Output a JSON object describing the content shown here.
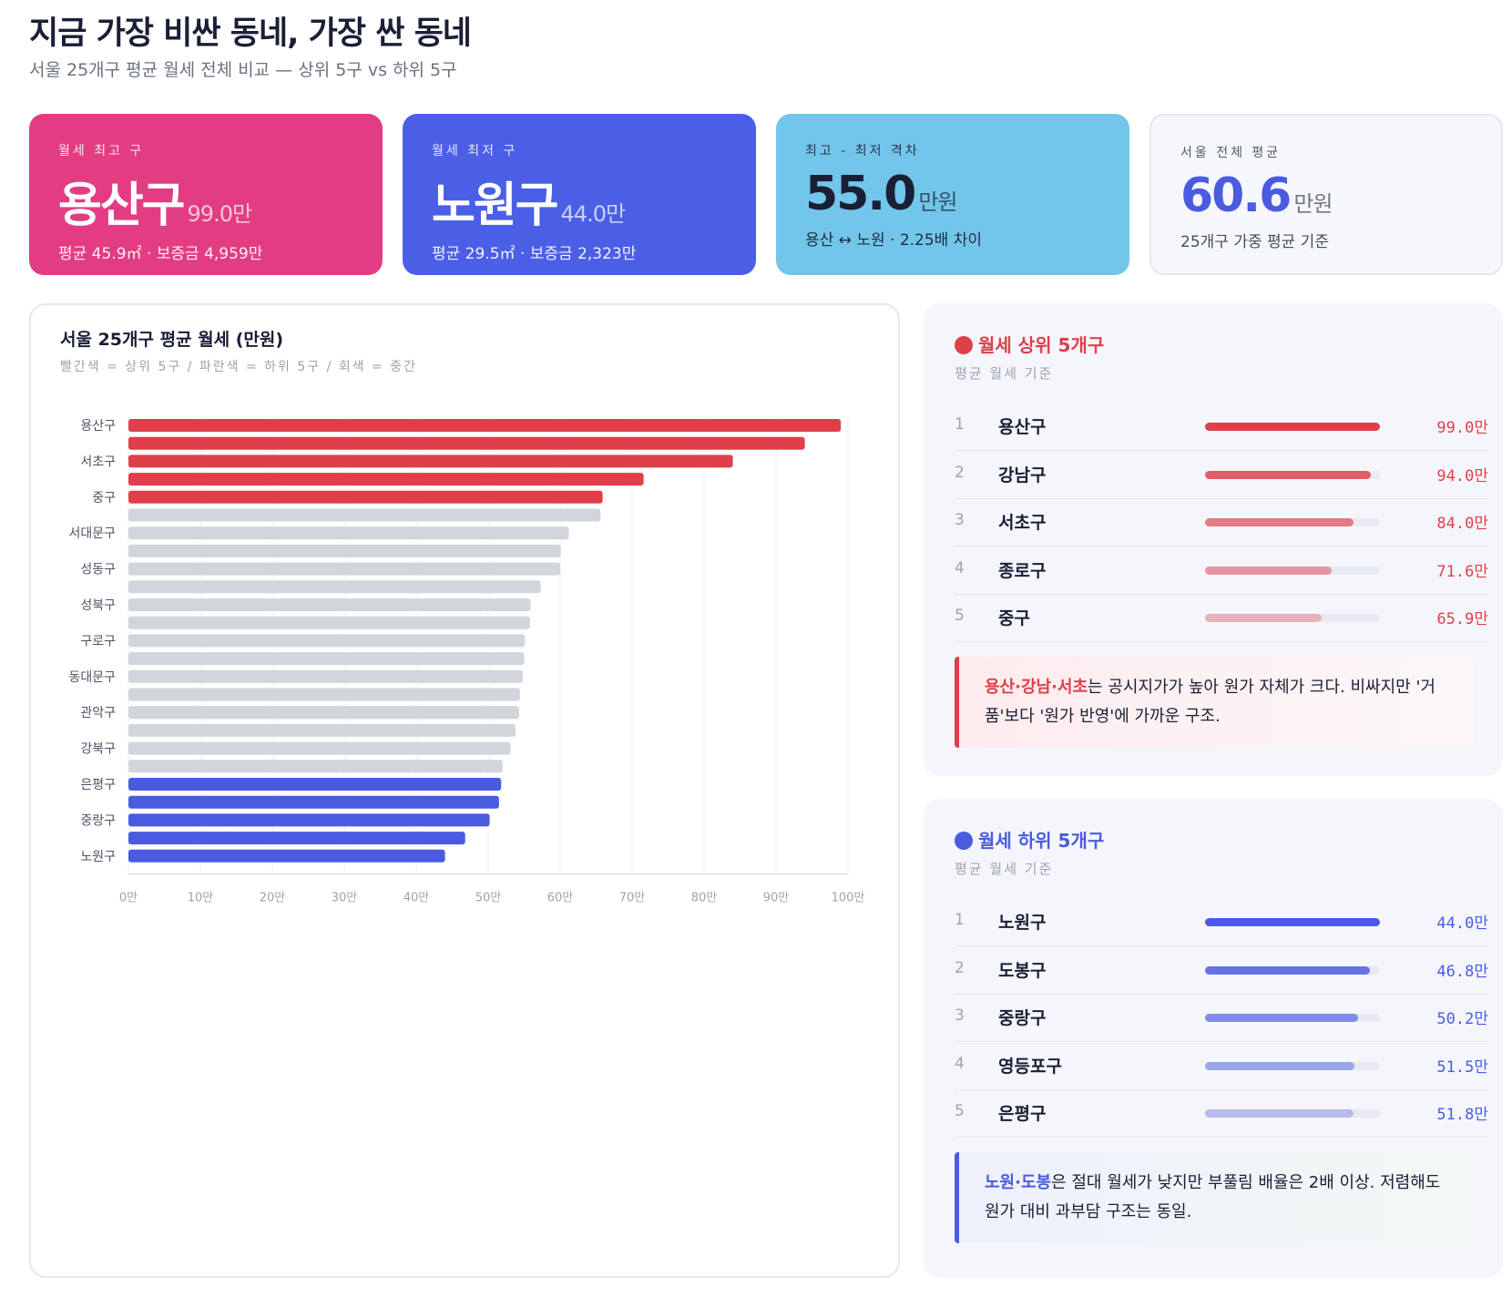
{
  "header": {
    "title": "지금 가장 비싼 동네, 가장 싼 동네",
    "subtitle": "서울 25개구 평균 월세 전체 비교 — 상위 5구 vs 하위 5구"
  },
  "cards": [
    {
      "label": "월세 최고 구",
      "value": "용산구",
      "extra": "99.0만",
      "note": "평균 45.9㎡ · 보증금 4,959만"
    },
    {
      "label": "월세 최저 구",
      "value": "노원구",
      "extra": "44.0만",
      "note": "평균 29.5㎡ · 보증금 2,323만"
    },
    {
      "label": "최고 - 최저 격차",
      "value": "55.0",
      "extra": "만원",
      "note": "용산 ↔ 노원 · 2.25배 차이"
    },
    {
      "label": "서울 전체 평균",
      "value": "60.6",
      "extra": "만원",
      "note": "25개구 가중 평균 기준"
    }
  ],
  "chart_data": {
    "type": "bar",
    "orientation": "horizontal",
    "title": "서울 25개구 평균 월세 (만원)",
    "subtitle": "빨간색 = 상위 5구 / 파란색 = 하위 5구 / 회색 = 중간",
    "categories": [
      "용산구",
      null,
      "서초구",
      null,
      "중구",
      null,
      "서대문구",
      null,
      "성동구",
      null,
      "성북구",
      null,
      "구로구",
      null,
      "동대문구",
      null,
      "관악구",
      null,
      "강북구",
      null,
      "은평구",
      null,
      "중랑구",
      null,
      "노원구"
    ],
    "values": [
      99.0,
      94.0,
      84.0,
      71.6,
      65.9,
      65.6,
      61.2,
      60.1,
      60.0,
      57.3,
      55.9,
      55.8,
      55.1,
      55.0,
      54.8,
      54.4,
      54.3,
      53.8,
      53.1,
      52.0,
      51.8,
      51.5,
      50.2,
      46.8,
      44.0
    ],
    "colors": [
      "#e03e4a",
      "#e03e4a",
      "#e03e4a",
      "#e03e4a",
      "#e03e4a",
      "#d1d5dc",
      "#d1d5dc",
      "#d1d5dc",
      "#d1d5dc",
      "#d1d5dc",
      "#d1d5dc",
      "#d1d5dc",
      "#d1d5dc",
      "#d1d5dc",
      "#d1d5dc",
      "#d1d5dc",
      "#d1d5dc",
      "#d1d5dc",
      "#d1d5dc",
      "#d1d5dc",
      "#4a5be0",
      "#4a5be0",
      "#4a5be0",
      "#4a5be0",
      "#4a5be0"
    ],
    "xlim": [
      0,
      100
    ],
    "xticks": [
      {
        "value": 0,
        "label": "0만"
      },
      {
        "value": 10,
        "label": "10만"
      },
      {
        "value": 20,
        "label": "20만"
      },
      {
        "value": 30,
        "label": "30만"
      },
      {
        "value": 40,
        "label": "40만"
      },
      {
        "value": 50,
        "label": "50만"
      },
      {
        "value": 60,
        "label": "60만"
      },
      {
        "value": 70,
        "label": "70만"
      },
      {
        "value": 80,
        "label": "80만"
      },
      {
        "value": 90,
        "label": "90만"
      },
      {
        "value": 100,
        "label": "100만"
      }
    ],
    "grid": true
  },
  "top5": {
    "title": "월세 상위 5개구",
    "subtitle": "평균 월세 기준",
    "color": "#e03e4a",
    "rows": [
      {
        "rank": 1,
        "name": "용산구",
        "value": 99.0,
        "value_label": "99.0만"
      },
      {
        "rank": 2,
        "name": "강남구",
        "value": 94.0,
        "value_label": "94.0만"
      },
      {
        "rank": 3,
        "name": "서초구",
        "value": 84.0,
        "value_label": "84.0만"
      },
      {
        "rank": 4,
        "name": "종로구",
        "value": 71.6,
        "value_label": "71.6만"
      },
      {
        "rank": 5,
        "name": "중구",
        "value": 65.9,
        "value_label": "65.9만"
      }
    ],
    "note": {
      "highlight": "용산·강남·서초",
      "text": "는 공시지가가 높아 원가 자체가 크다. 비싸지만 '거품'보다 '원가 반영'에 가까운 구조."
    }
  },
  "bottom5": {
    "title": "월세 하위 5개구",
    "subtitle": "평균 월세 기준",
    "color": "#4a5be0",
    "rows": [
      {
        "rank": 1,
        "name": "노원구",
        "value": 44.0,
        "value_label": "44.0만"
      },
      {
        "rank": 2,
        "name": "도봉구",
        "value": 46.8,
        "value_label": "46.8만"
      },
      {
        "rank": 3,
        "name": "중랑구",
        "value": 50.2,
        "value_label": "50.2만"
      },
      {
        "rank": 4,
        "name": "영등포구",
        "value": 51.5,
        "value_label": "51.5만"
      },
      {
        "rank": 5,
        "name": "은평구",
        "value": 51.8,
        "value_label": "51.8만"
      }
    ],
    "note": {
      "highlight": "노원·도봉",
      "text": "은 절대 월세가 낮지만 부풀림 배율은 2배 이상. 저렴해도 원가 대비 과부담 구조는 동일."
    }
  }
}
